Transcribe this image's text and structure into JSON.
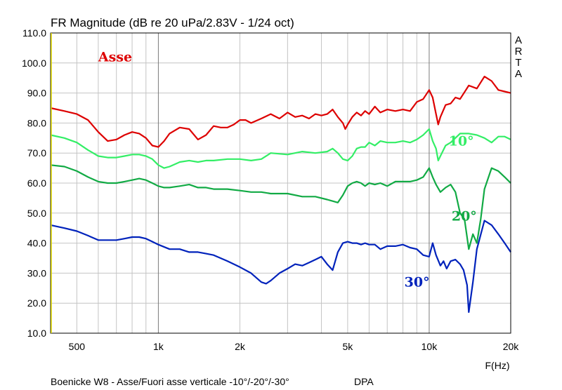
{
  "chart_data": {
    "type": "line",
    "title": "FR Magnitude (dB re 20 uPa/2.83V - 1/24 oct)",
    "xlabel": "F(Hz)",
    "ylabel": "",
    "xscale": "log",
    "xlim": [
      400,
      20000
    ],
    "ylim": [
      10,
      110
    ],
    "grid": true,
    "yticks": [
      "110.0",
      "100.0",
      "90.0",
      "80.0",
      "70.0",
      "60.0",
      "50.0",
      "40.0",
      "30.0",
      "20.0",
      "10.0"
    ],
    "xticks": [
      {
        "value": 500,
        "label": "500"
      },
      {
        "value": 1000,
        "label": "1k"
      },
      {
        "value": 2000,
        "label": "2k"
      },
      {
        "value": 5000,
        "label": "5k"
      },
      {
        "value": 10000,
        "label": "10k"
      },
      {
        "value": 20000,
        "label": "20k"
      }
    ],
    "watermark": [
      "A",
      "R",
      "T",
      "A"
    ],
    "footer": "Boenicke W8 - Asse/Fuori asse verticale -10°/-20°/-30°",
    "footer_right": "DPA",
    "series": [
      {
        "name": "Asse",
        "color": "#dd0000",
        "label_at": [
          600,
          100.5
        ],
        "x": [
          400,
          450,
          500,
          550,
          600,
          650,
          700,
          750,
          800,
          850,
          900,
          950,
          1000,
          1050,
          1100,
          1200,
          1300,
          1400,
          1500,
          1600,
          1700,
          1800,
          1900,
          2000,
          2100,
          2200,
          2400,
          2600,
          2800,
          3000,
          3200,
          3400,
          3600,
          3800,
          4000,
          4200,
          4400,
          4600,
          4800,
          4900,
          5000,
          5200,
          5400,
          5600,
          5800,
          6000,
          6300,
          6600,
          7000,
          7500,
          8000,
          8500,
          9000,
          9500,
          10000,
          10300,
          10600,
          10800,
          11000,
          11500,
          12000,
          12500,
          13000,
          14000,
          15000,
          16000,
          17000,
          18000,
          19000,
          20000
        ],
        "values": [
          85,
          84,
          83,
          81,
          77,
          74,
          74.5,
          76,
          77,
          76.5,
          75,
          72.5,
          72,
          74,
          76.5,
          78.5,
          78,
          74.5,
          76,
          79,
          78.5,
          78.5,
          79.5,
          81,
          81,
          80,
          81.5,
          83,
          81.5,
          83.5,
          82,
          82.5,
          81.5,
          83,
          82.5,
          83,
          84.5,
          82,
          80,
          78,
          79.5,
          82,
          83.5,
          82.5,
          84,
          83,
          85.5,
          83.5,
          84.5,
          84,
          84.5,
          84,
          87,
          88,
          91,
          88.5,
          83,
          79.5,
          82,
          86,
          86.5,
          88.5,
          88,
          92.5,
          91.5,
          95.5,
          94,
          91,
          90.5,
          90
        ]
      },
      {
        "name": "10°",
        "color": "#33ee66",
        "label_at": [
          11800,
          72.5
        ],
        "x": [
          400,
          450,
          500,
          550,
          600,
          650,
          700,
          750,
          800,
          850,
          900,
          950,
          1000,
          1050,
          1100,
          1200,
          1300,
          1400,
          1500,
          1600,
          1800,
          2000,
          2200,
          2400,
          2600,
          3000,
          3400,
          3800,
          4200,
          4400,
          4600,
          4800,
          5000,
          5200,
          5400,
          5600,
          5800,
          6000,
          6300,
          6600,
          7000,
          7500,
          8000,
          8500,
          9000,
          9500,
          10000,
          10300,
          10600,
          10800,
          11000,
          11500,
          12000,
          13000,
          14000,
          15000,
          16000,
          17000,
          18000,
          19000,
          20000
        ],
        "values": [
          76,
          75,
          73.5,
          71,
          69,
          68.5,
          68.5,
          69,
          69.5,
          69.5,
          69,
          68,
          66,
          65,
          65.5,
          67,
          67.5,
          67,
          67.5,
          67.5,
          68,
          68,
          67.5,
          68,
          70,
          69.5,
          70.5,
          70,
          70.5,
          71.5,
          70,
          68,
          67.5,
          69,
          71.5,
          72,
          72,
          73.5,
          72.5,
          74,
          73.5,
          73.5,
          74,
          73.5,
          74.5,
          76,
          78,
          74,
          71.5,
          67.5,
          69,
          72.5,
          73.5,
          76.5,
          76.5,
          76,
          75,
          73.5,
          75.5,
          75.5,
          74.5
        ]
      },
      {
        "name": "20°",
        "color": "#11aa44",
        "label_at": [
          12100,
          47.5
        ],
        "x": [
          400,
          450,
          500,
          550,
          600,
          650,
          700,
          750,
          800,
          850,
          900,
          950,
          1000,
          1050,
          1100,
          1200,
          1300,
          1400,
          1500,
          1600,
          1800,
          2000,
          2200,
          2400,
          2600,
          3000,
          3400,
          3800,
          4200,
          4400,
          4600,
          4800,
          5000,
          5200,
          5400,
          5600,
          5800,
          6000,
          6300,
          6600,
          7000,
          7500,
          8000,
          8500,
          9000,
          9500,
          10000,
          10300,
          10600,
          11000,
          11500,
          12000,
          12500,
          13000,
          13500,
          14000,
          14500,
          15000,
          15500,
          16000,
          17000,
          18000,
          19000,
          20000
        ],
        "values": [
          66,
          65.5,
          64,
          62,
          60.5,
          60,
          60,
          60.5,
          61,
          61.5,
          61,
          60,
          59,
          58.5,
          58.5,
          59,
          59.5,
          58.5,
          58.5,
          58,
          58,
          57.5,
          57,
          57,
          56.5,
          56.5,
          55.5,
          55.5,
          54.5,
          54,
          53.5,
          56,
          59,
          60,
          60.5,
          60,
          59,
          60,
          59.5,
          60,
          59,
          60.5,
          60.5,
          60.5,
          61,
          62,
          65,
          62,
          59.5,
          57,
          58.5,
          59.5,
          57,
          50,
          48,
          38,
          43,
          40,
          48,
          58,
          65,
          64,
          62,
          60
        ]
      },
      {
        "name": "30°",
        "color": "#0022bb",
        "label_at": [
          8100,
          25.5
        ],
        "x": [
          400,
          450,
          500,
          550,
          600,
          650,
          700,
          750,
          800,
          850,
          900,
          950,
          1000,
          1100,
          1200,
          1300,
          1400,
          1500,
          1600,
          1800,
          2000,
          2200,
          2400,
          2500,
          2600,
          2800,
          3000,
          3200,
          3400,
          3600,
          3800,
          4000,
          4200,
          4400,
          4600,
          4800,
          5000,
          5200,
          5400,
          5600,
          5800,
          6000,
          6300,
          6600,
          7000,
          7500,
          8000,
          8500,
          9000,
          9500,
          10000,
          10300,
          10600,
          11000,
          11300,
          11600,
          12000,
          12500,
          13000,
          13400,
          13800,
          14000,
          14500,
          15000,
          16000,
          17000,
          18000,
          19000,
          20000
        ],
        "values": [
          46,
          45,
          44,
          42.5,
          41,
          41,
          41,
          41.5,
          42,
          42,
          41.5,
          40.5,
          39.5,
          38,
          38,
          37,
          37,
          36.5,
          36,
          34,
          32,
          30,
          27,
          26.5,
          27.5,
          30,
          31.5,
          33,
          32.5,
          33.5,
          34.5,
          35.5,
          33,
          31,
          37,
          40,
          40.5,
          40,
          40,
          39.5,
          40,
          39.5,
          39.5,
          38,
          39,
          39,
          39.5,
          38.5,
          38,
          36,
          35.5,
          40,
          36,
          32.5,
          34,
          31.5,
          34,
          34.5,
          33,
          31,
          26,
          17,
          27,
          38,
          47.5,
          46,
          43,
          40,
          37
        ]
      }
    ]
  }
}
